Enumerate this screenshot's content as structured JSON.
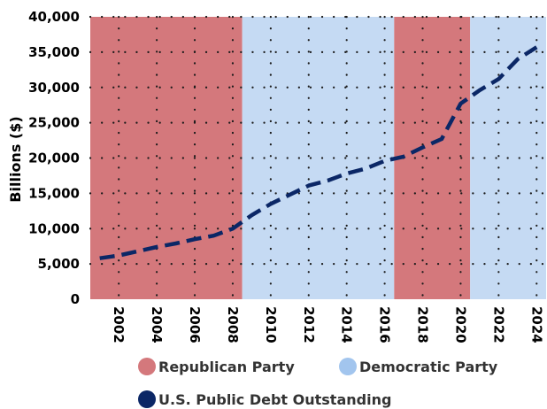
{
  "chart_data": {
    "type": "line",
    "title": "",
    "xlabel": "",
    "ylabel": "Billions ($)",
    "xlim": [
      2000.5,
      2024.5
    ],
    "ylim": [
      0,
      40000
    ],
    "y_ticks": [
      "0",
      "5,000",
      "10,000",
      "15,000",
      "20,000",
      "25,000",
      "30,000",
      "35,000",
      "40,000"
    ],
    "y_tick_values": [
      0,
      5000,
      10000,
      15000,
      20000,
      25000,
      30000,
      35000,
      40000
    ],
    "x_ticks": [
      "2002",
      "2004",
      "2006",
      "2008",
      "2010",
      "2012",
      "2014",
      "2016",
      "2018",
      "2020",
      "2022",
      "2024"
    ],
    "x_tick_values": [
      2002,
      2004,
      2006,
      2008,
      2010,
      2012,
      2014,
      2016,
      2018,
      2020,
      2022,
      2024
    ],
    "grid": true,
    "legend_position": "bottom",
    "bands": [
      {
        "party": "Republican Party",
        "start": 2000.5,
        "end": 2008.5,
        "color": "#d4787c"
      },
      {
        "party": "Democratic Party",
        "start": 2008.5,
        "end": 2016.5,
        "color": "#c5daf3"
      },
      {
        "party": "Republican Party",
        "start": 2016.5,
        "end": 2020.5,
        "color": "#d4787c"
      },
      {
        "party": "Democratic Party",
        "start": 2020.5,
        "end": 2024.5,
        "color": "#c5daf3"
      }
    ],
    "series": [
      {
        "name": "U.S. Public Debt Outstanding",
        "color": "#0b2766",
        "x": [
          2001,
          2002,
          2003,
          2004,
          2005,
          2006,
          2007,
          2008,
          2009,
          2010,
          2011,
          2012,
          2013,
          2014,
          2015,
          2016,
          2017,
          2018,
          2019,
          2020,
          2021,
          2022,
          2023,
          2024
        ],
        "y": [
          5800,
          6200,
          6800,
          7400,
          7900,
          8500,
          9000,
          10000,
          11900,
          13500,
          14800,
          16100,
          16800,
          17800,
          18500,
          19600,
          20200,
          21500,
          22700,
          27700,
          29600,
          31200,
          34000,
          35700
        ]
      }
    ],
    "legend": [
      {
        "label": "Republican Party",
        "color": "#d4787c",
        "marker": "circle"
      },
      {
        "label": "Democratic Party",
        "color": "#a2c5ee",
        "marker": "circle"
      },
      {
        "label": "U.S. Public Debt Outstanding",
        "color": "#0b2766",
        "marker": "circle"
      }
    ]
  }
}
